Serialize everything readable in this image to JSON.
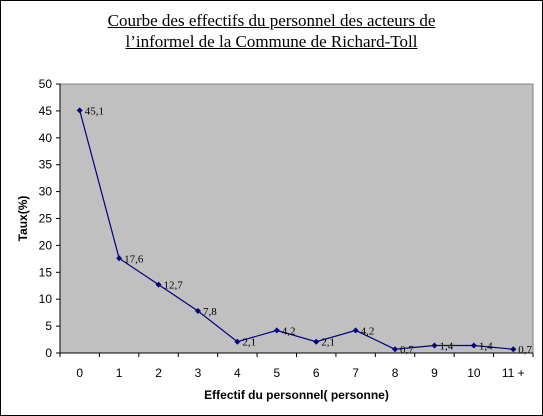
{
  "chart_data": {
    "type": "line",
    "title": "Courbe des effectifs du personnel des acteurs de l’informel de la Commune de Richard-Toll",
    "title_lines": [
      "Courbe des effectifs du personnel des acteurs de",
      "l’informel de la Commune de Richard-Toll"
    ],
    "xlabel": "Effectif du personnel( personne)",
    "ylabel": "Taux(%)",
    "categories": [
      "0",
      "1",
      "2",
      "3",
      "4",
      "5",
      "6",
      "7",
      "8",
      "9",
      "10",
      "11 +"
    ],
    "values": [
      45.1,
      17.6,
      12.7,
      7.8,
      2.1,
      4.2,
      2.1,
      4.2,
      0.7,
      1.4,
      1.4,
      0.7
    ],
    "data_labels": [
      "45,1",
      "17,6",
      "12,7",
      "7,8",
      "2,1",
      "4,2",
      "2,1",
      "4,2",
      "0,7",
      "1,4",
      "1,4",
      "0,7"
    ],
    "ylim": [
      0,
      50
    ],
    "yticks": [
      "0",
      "5",
      "10",
      "15",
      "20",
      "25",
      "30",
      "35",
      "40",
      "45",
      "50"
    ],
    "grid": false,
    "legend": "none",
    "colors": {
      "plot_background": "#c0c0c0",
      "series_line": "#000080",
      "marker": "#000080"
    }
  }
}
